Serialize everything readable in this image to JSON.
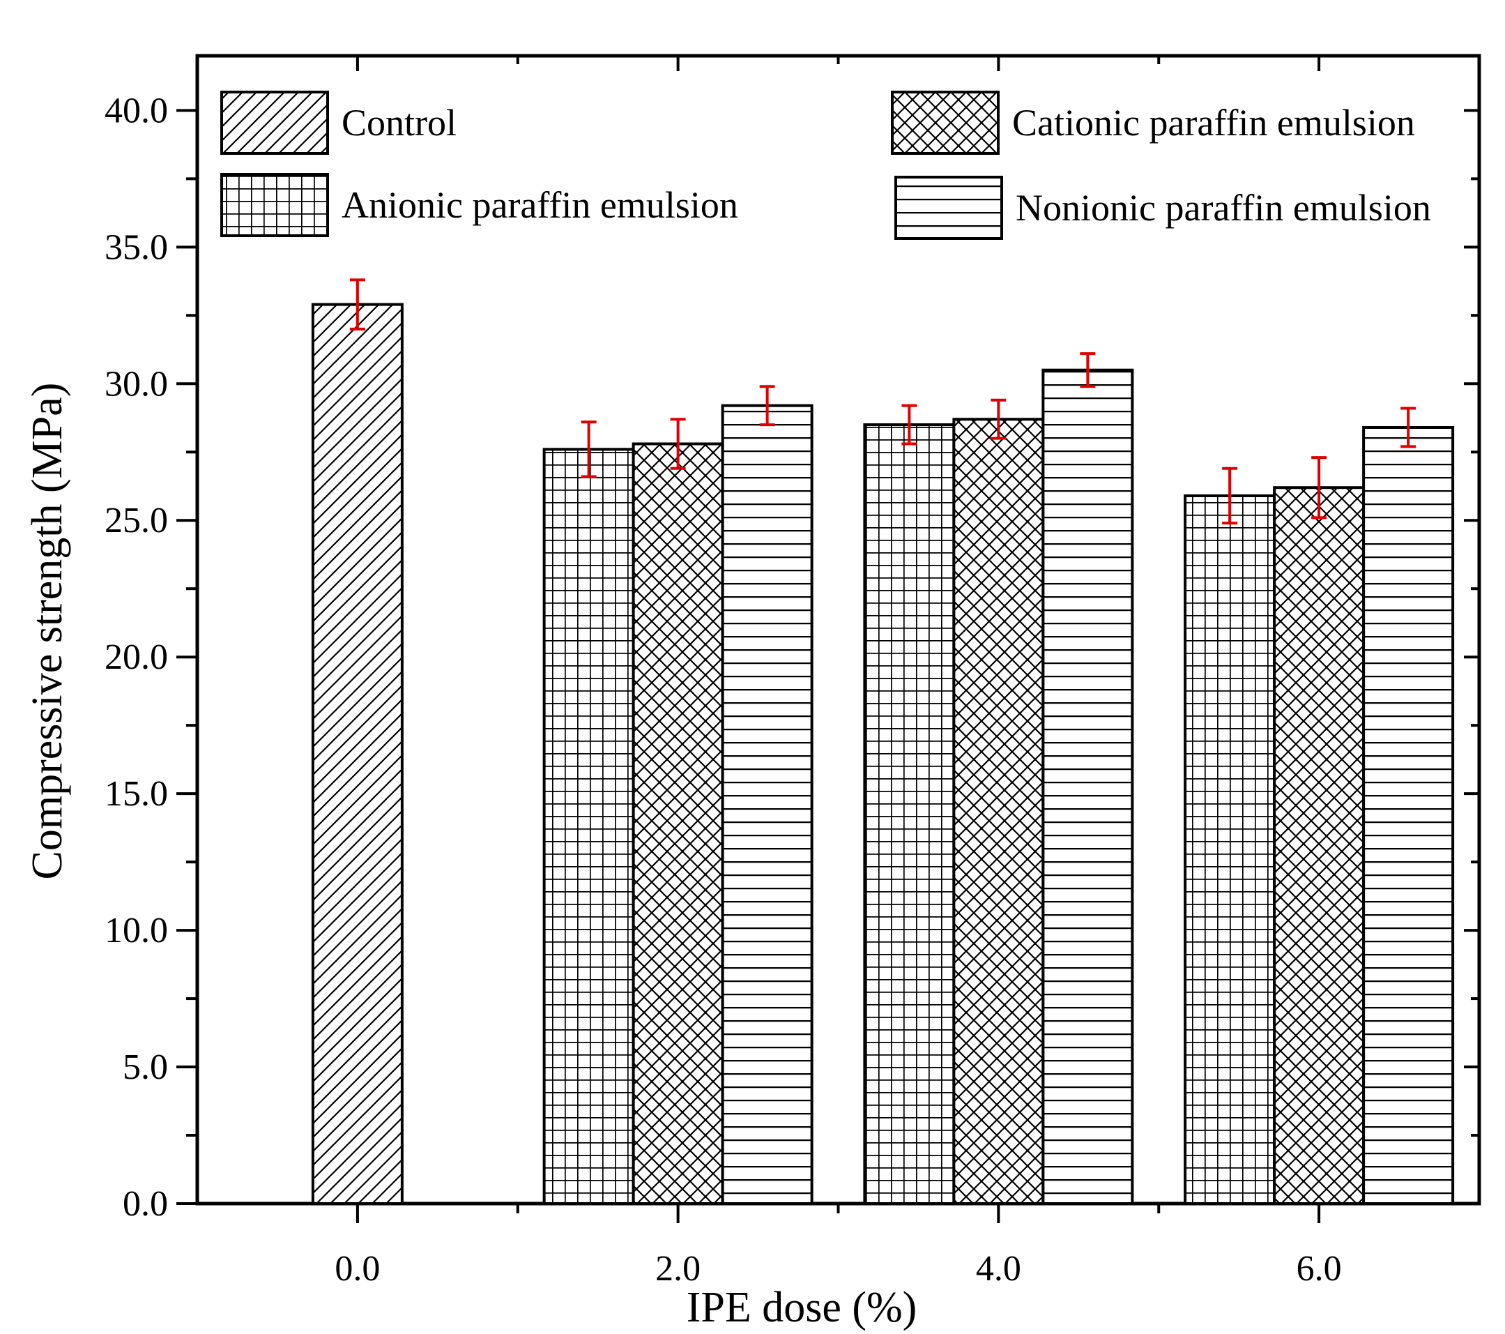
{
  "chart_data": {
    "type": "bar",
    "title": "",
    "xlabel": "IPE dose (%)",
    "ylabel": "Compressive strength (MPa)",
    "ylim": [
      0,
      42
    ],
    "y_ticks": [
      "0.0",
      "5.0",
      "10.0",
      "15.0",
      "20.0",
      "25.0",
      "30.0",
      "35.0",
      "40.0"
    ],
    "categories": [
      "0.0",
      "2.0",
      "4.0",
      "6.0"
    ],
    "legend_position": "top",
    "series": [
      {
        "name": "Control",
        "pattern": "diagonal-hatch",
        "values": [
          32.9,
          null,
          null,
          null
        ],
        "errors": [
          0.9,
          null,
          null,
          null
        ]
      },
      {
        "name": "Anionic paraffin emulsion",
        "pattern": "grid",
        "values": [
          null,
          27.6,
          28.5,
          25.9
        ],
        "errors": [
          null,
          1.0,
          0.7,
          1.0
        ]
      },
      {
        "name": "Cationic paraffin emulsion",
        "pattern": "crosshatch",
        "values": [
          null,
          27.8,
          28.7,
          26.2
        ],
        "errors": [
          null,
          0.9,
          0.7,
          1.1
        ]
      },
      {
        "name": "Nonionic paraffin emulsion",
        "pattern": "horizontal-lines",
        "values": [
          null,
          29.2,
          30.5,
          28.4
        ],
        "errors": [
          null,
          0.7,
          0.6,
          0.7
        ]
      }
    ],
    "colors": {
      "bar_stroke": "#000000",
      "bar_fill": "#ffffff",
      "error_bar": "#e00000",
      "axis": "#000000"
    }
  }
}
